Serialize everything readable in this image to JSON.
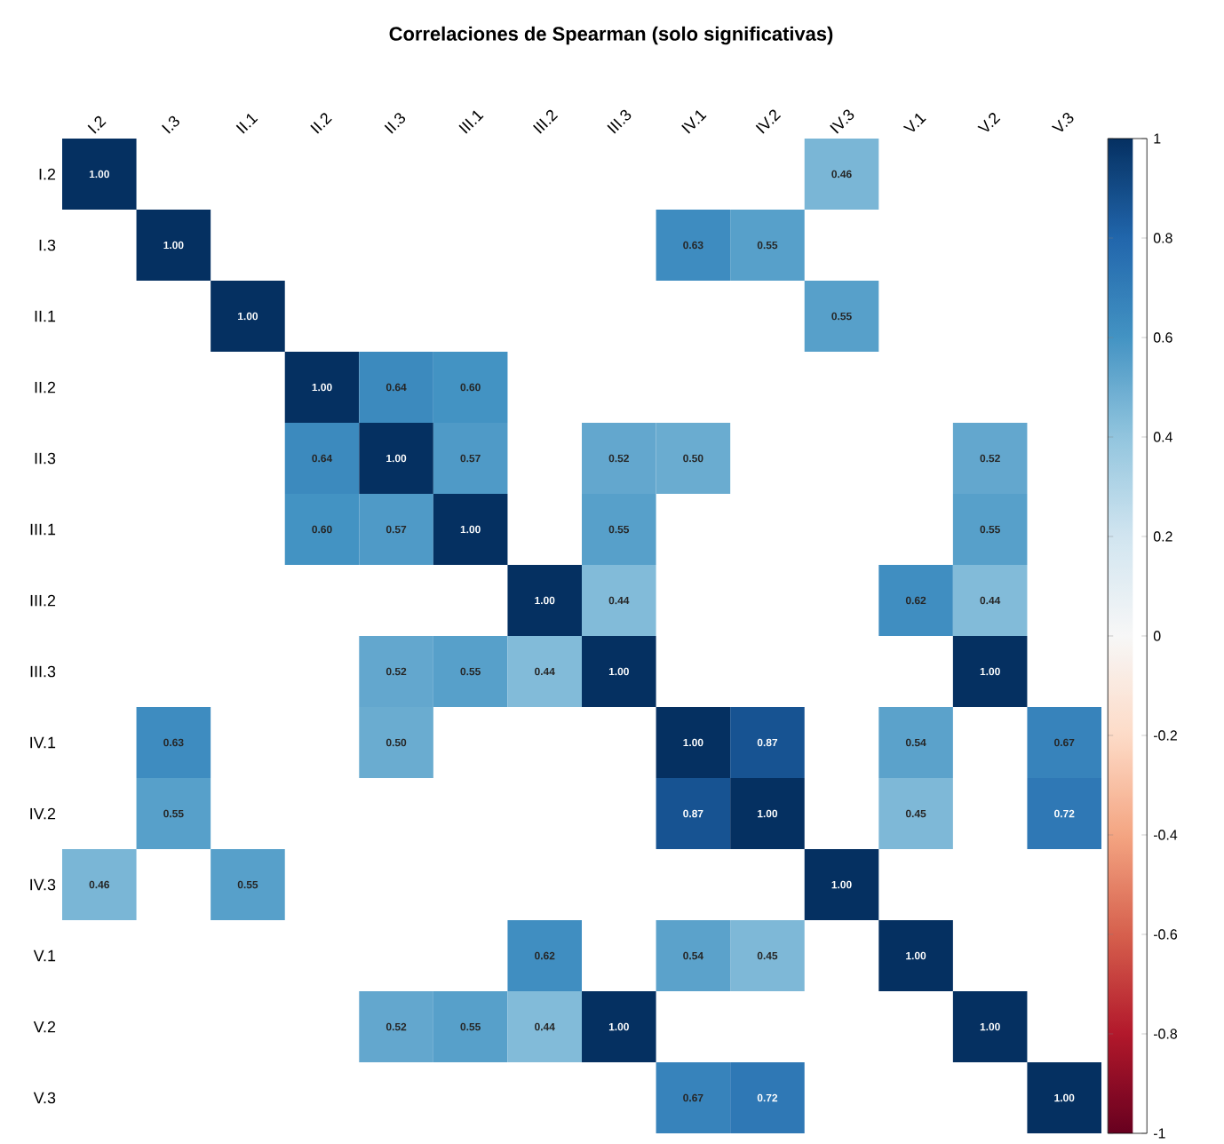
{
  "chart_data": {
    "type": "heatmap",
    "title": "Correlaciones de Spearman (solo significativas)",
    "categories": [
      "I.2",
      "I.3",
      "II.1",
      "II.2",
      "II.3",
      "III.1",
      "III.2",
      "III.3",
      "IV.1",
      "IV.2",
      "IV.3",
      "V.1",
      "V.2",
      "V.3"
    ],
    "y_categories": [
      "I.2",
      "I.3",
      "II.1",
      "II.2",
      "II.3",
      "III.1",
      "III.2",
      "III.3",
      "IV.1",
      "IV.2",
      "IV.3",
      "V.1",
      "V.2",
      "V.3"
    ],
    "cells": [
      [
        1.0,
        null,
        null,
        null,
        null,
        null,
        null,
        null,
        null,
        null,
        0.46,
        null,
        null,
        null
      ],
      [
        null,
        1.0,
        null,
        null,
        null,
        null,
        null,
        null,
        0.63,
        0.55,
        null,
        null,
        null,
        null
      ],
      [
        null,
        null,
        1.0,
        null,
        null,
        null,
        null,
        null,
        null,
        null,
        0.55,
        null,
        null,
        null
      ],
      [
        null,
        null,
        null,
        1.0,
        0.64,
        0.6,
        null,
        null,
        null,
        null,
        null,
        null,
        null,
        null
      ],
      [
        null,
        null,
        null,
        0.64,
        1.0,
        0.57,
        null,
        0.52,
        0.5,
        null,
        null,
        null,
        0.52,
        null
      ],
      [
        null,
        null,
        null,
        0.6,
        0.57,
        1.0,
        null,
        0.55,
        null,
        null,
        null,
        null,
        0.55,
        null
      ],
      [
        null,
        null,
        null,
        null,
        null,
        null,
        1.0,
        0.44,
        null,
        null,
        null,
        0.62,
        0.44,
        null
      ],
      [
        null,
        null,
        null,
        null,
        0.52,
        0.55,
        0.44,
        1.0,
        null,
        null,
        null,
        null,
        1.0,
        null
      ],
      [
        null,
        0.63,
        null,
        null,
        0.5,
        null,
        null,
        null,
        1.0,
        0.87,
        null,
        0.54,
        null,
        0.67
      ],
      [
        null,
        0.55,
        null,
        null,
        null,
        null,
        null,
        null,
        0.87,
        1.0,
        null,
        0.45,
        null,
        0.72
      ],
      [
        0.46,
        null,
        0.55,
        null,
        null,
        null,
        null,
        null,
        null,
        null,
        1.0,
        null,
        null,
        null
      ],
      [
        null,
        null,
        null,
        null,
        null,
        null,
        0.62,
        null,
        0.54,
        0.45,
        null,
        1.0,
        null,
        null
      ],
      [
        null,
        null,
        null,
        null,
        0.52,
        0.55,
        0.44,
        1.0,
        null,
        null,
        null,
        null,
        1.0,
        null
      ],
      [
        null,
        null,
        null,
        null,
        null,
        null,
        null,
        null,
        0.67,
        0.72,
        null,
        null,
        null,
        1.0
      ]
    ],
    "cell_labels": [
      [
        "1.00",
        null,
        null,
        null,
        null,
        null,
        null,
        null,
        null,
        null,
        "0.46",
        null,
        null,
        null
      ],
      [
        null,
        "1.00",
        null,
        null,
        null,
        null,
        null,
        null,
        "0.63",
        "0.55",
        null,
        null,
        null,
        null
      ],
      [
        null,
        null,
        "1.00",
        null,
        null,
        null,
        null,
        null,
        null,
        null,
        "0.55",
        null,
        null,
        null
      ],
      [
        null,
        null,
        null,
        "1.00",
        "0.64",
        "0.60",
        null,
        null,
        null,
        null,
        null,
        null,
        null,
        null
      ],
      [
        null,
        null,
        null,
        "0.64",
        "1.00",
        "0.57",
        null,
        "0.52",
        "0.50",
        null,
        null,
        null,
        "0.52",
        null
      ],
      [
        null,
        null,
        null,
        "0.60",
        "0.57",
        "1.00",
        null,
        "0.55",
        null,
        null,
        null,
        null,
        "0.55",
        null
      ],
      [
        null,
        null,
        null,
        null,
        null,
        null,
        "1.00",
        "0.44",
        null,
        null,
        null,
        "0.62",
        "0.44",
        null
      ],
      [
        null,
        null,
        null,
        null,
        "0.52",
        "0.55",
        "0.44",
        "1.00",
        null,
        null,
        null,
        null,
        "1.00",
        null
      ],
      [
        null,
        "0.63",
        null,
        null,
        "0.50",
        null,
        null,
        null,
        "1.00",
        "0.87",
        null,
        "0.54",
        null,
        "0.67"
      ],
      [
        null,
        "0.55",
        null,
        null,
        null,
        null,
        null,
        null,
        "0.87",
        "1.00",
        null,
        "0.45",
        null,
        "0.72"
      ],
      [
        "0.46",
        null,
        "0.55",
        null,
        null,
        null,
        null,
        null,
        null,
        null,
        "1.00",
        null,
        null,
        null
      ],
      [
        null,
        null,
        null,
        null,
        null,
        null,
        "0.62",
        null,
        "0.54",
        "0.45",
        null,
        "1.00",
        null,
        null
      ],
      [
        null,
        null,
        null,
        null,
        "0.52",
        "0.55",
        "0.44",
        "1.00",
        null,
        null,
        null,
        null,
        "1.00",
        null
      ],
      [
        null,
        null,
        null,
        null,
        null,
        null,
        null,
        null,
        "0.67",
        "0.72",
        null,
        null,
        null,
        "1.00"
      ]
    ],
    "clim": [
      -1,
      1
    ],
    "cticks": [
      -1,
      -0.8,
      -0.6,
      -0.4,
      -0.2,
      0,
      0.2,
      0.4,
      0.6,
      0.8,
      1
    ],
    "grid": false
  }
}
